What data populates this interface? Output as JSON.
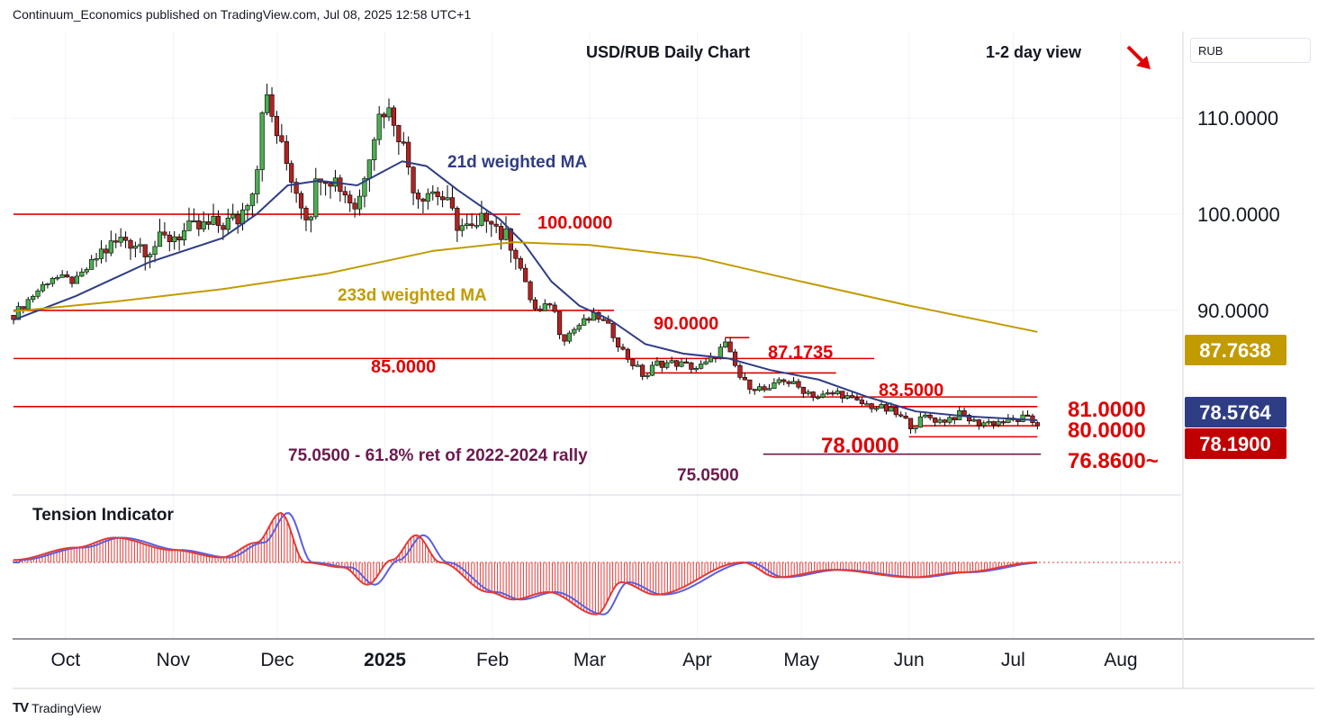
{
  "header": "Continuum_Economics published on TradingView.com, Jul 08, 2025 12:58 UTC+1",
  "currency_label": "RUB",
  "footer_brand": "TradingView",
  "colors": {
    "support_resistance": "#e00000",
    "ma21": "#2f3d84",
    "ma233": "#c29b00",
    "up_candle": "#4caf50",
    "down_candle": "#b22222",
    "fib_line": "#6b1a4f",
    "tension_red": "#e53935",
    "tension_blue": "#5b5fe0"
  },
  "chart_data": {
    "type": "candlestick",
    "title": "USD/RUB Daily Chart",
    "view_label": "1-2 day view",
    "view_direction": "down",
    "x_ticks": [
      "Oct",
      "Nov",
      "Dec",
      "2025",
      "Feb",
      "Mar",
      "Apr",
      "May",
      "Jun",
      "Jul",
      "Aug"
    ],
    "y_ticks": [
      "110.0000",
      "100.0000",
      "90.0000"
    ],
    "ylim": [
      71.0,
      119.0
    ],
    "price_tags": [
      {
        "value": "87.7638",
        "color": "#c29b00"
      },
      {
        "value": "78.5764",
        "color": "#2f3d84"
      },
      {
        "value": "78.1900",
        "color": "#c00000"
      }
    ],
    "levels": [
      {
        "value": 100.0,
        "label": "100.0000"
      },
      {
        "value": 90.0,
        "label": "90.0000"
      },
      {
        "value": 87.1735,
        "label": "87.1735"
      },
      {
        "value": 85.0,
        "label": "85.0000"
      },
      {
        "value": 83.5,
        "label": "83.5000"
      },
      {
        "value": 81.0,
        "label": "81.0000"
      },
      {
        "value": 80.0,
        "label": "80.0000"
      },
      {
        "value": 78.0,
        "label": "78.0000"
      },
      {
        "value": 76.86,
        "label": "76.8600~"
      },
      {
        "value": 75.05,
        "label": "75.0500"
      }
    ],
    "annotations": {
      "fib_text": "75.0500 - 61.8% ret of 2022-2024 rally",
      "ma21_label": "21d weighted MA",
      "ma233_label": "233d weighted MA",
      "indicator_label": "Tension Indicator"
    },
    "close_path": [
      [
        "2024-09-16",
        89.5
      ],
      [
        "2024-09-20",
        91.0
      ],
      [
        "2024-09-27",
        93.5
      ],
      [
        "2024-10-04",
        93.0
      ],
      [
        "2024-10-11",
        96.0
      ],
      [
        "2024-10-18",
        97.5
      ],
      [
        "2024-10-25",
        96.5
      ],
      [
        "2024-11-01",
        97.8
      ],
      [
        "2024-11-08",
        98.5
      ],
      [
        "2024-11-15",
        99.0
      ],
      [
        "2024-11-20",
        99.5
      ],
      [
        "2024-11-25",
        104.0
      ],
      [
        "2024-11-27",
        113.0
      ],
      [
        "2024-12-02",
        107.0
      ],
      [
        "2024-12-06",
        103.0
      ],
      [
        "2024-12-10",
        99.5
      ],
      [
        "2024-12-13",
        104.5
      ],
      [
        "2024-12-18",
        103.5
      ],
      [
        "2024-12-20",
        102.5
      ],
      [
        "2024-12-24",
        100.5
      ],
      [
        "2024-12-27",
        106.0
      ],
      [
        "2024-12-31",
        111.0
      ],
      [
        "2025-01-03",
        110.5
      ],
      [
        "2025-01-06",
        107.5
      ],
      [
        "2025-01-10",
        102.0
      ],
      [
        "2025-01-14",
        102.5
      ],
      [
        "2025-01-17",
        102.0
      ],
      [
        "2025-01-22",
        99.0
      ],
      [
        "2025-01-27",
        98.0
      ],
      [
        "2025-01-31",
        100.5
      ],
      [
        "2025-02-03",
        98.0
      ],
      [
        "2025-02-07",
        97.0
      ],
      [
        "2025-02-11",
        92.0
      ],
      [
        "2025-02-14",
        89.5
      ],
      [
        "2025-02-18",
        91.0
      ],
      [
        "2025-02-21",
        87.0
      ],
      [
        "2025-02-26",
        88.5
      ],
      [
        "2025-03-03",
        89.5
      ],
      [
        "2025-03-07",
        88.0
      ],
      [
        "2025-03-11",
        85.5
      ],
      [
        "2025-03-17",
        83.0
      ],
      [
        "2025-03-20",
        84.5
      ],
      [
        "2025-03-26",
        84.5
      ],
      [
        "2025-04-01",
        84.0
      ],
      [
        "2025-04-04",
        84.5
      ],
      [
        "2025-04-09",
        86.5
      ],
      [
        "2025-04-14",
        82.5
      ],
      [
        "2025-04-18",
        82.0
      ],
      [
        "2025-04-22",
        81.5
      ],
      [
        "2025-04-25",
        83.0
      ],
      [
        "2025-04-30",
        82.0
      ],
      [
        "2025-05-06",
        81.0
      ],
      [
        "2025-05-12",
        81.5
      ],
      [
        "2025-05-16",
        80.5
      ],
      [
        "2025-05-22",
        80.0
      ],
      [
        "2025-05-27",
        79.5
      ],
      [
        "2025-06-02",
        78.0
      ],
      [
        "2025-06-06",
        79.0
      ],
      [
        "2025-06-10",
        78.5
      ],
      [
        "2025-06-16",
        79.2
      ],
      [
        "2025-06-20",
        78.3
      ],
      [
        "2025-06-26",
        78.4
      ],
      [
        "2025-07-01",
        78.5
      ],
      [
        "2025-07-04",
        78.8
      ],
      [
        "2025-07-08",
        78.19
      ]
    ],
    "ma21_path": [
      [
        "2024-09-16",
        89.0
      ],
      [
        "2024-10-04",
        91.5
      ],
      [
        "2024-10-25",
        95.0
      ],
      [
        "2024-11-15",
        97.5
      ],
      [
        "2024-11-25",
        100.0
      ],
      [
        "2024-12-04",
        103.0
      ],
      [
        "2024-12-13",
        103.5
      ],
      [
        "2024-12-24",
        103.0
      ],
      [
        "2025-01-06",
        105.5
      ],
      [
        "2025-01-13",
        105.0
      ],
      [
        "2025-01-22",
        102.5
      ],
      [
        "2025-02-03",
        99.5
      ],
      [
        "2025-02-10",
        97.0
      ],
      [
        "2025-02-18",
        93.0
      ],
      [
        "2025-02-26",
        90.5
      ],
      [
        "2025-03-07",
        89.0
      ],
      [
        "2025-03-17",
        86.5
      ],
      [
        "2025-03-28",
        85.5
      ],
      [
        "2025-04-10",
        85.0
      ],
      [
        "2025-04-22",
        83.8
      ],
      [
        "2025-05-06",
        82.8
      ],
      [
        "2025-05-20",
        81.0
      ],
      [
        "2025-06-03",
        79.5
      ],
      [
        "2025-06-17",
        79.0
      ],
      [
        "2025-07-08",
        78.5764
      ]
    ],
    "ma233_path": [
      [
        "2024-09-16",
        89.9
      ],
      [
        "2024-10-15",
        90.9
      ],
      [
        "2024-11-15",
        92.2
      ],
      [
        "2024-12-15",
        93.8
      ],
      [
        "2025-01-15",
        96.2
      ],
      [
        "2025-02-07",
        97.1
      ],
      [
        "2025-03-01",
        96.8
      ],
      [
        "2025-04-01",
        95.5
      ],
      [
        "2025-05-01",
        93.0
      ],
      [
        "2025-06-01",
        90.5
      ],
      [
        "2025-07-08",
        87.7638
      ]
    ],
    "tension_path": [
      [
        "2024-09-16",
        0.05
      ],
      [
        "2024-10-04",
        0.3
      ],
      [
        "2024-10-15",
        0.5
      ],
      [
        "2024-11-01",
        0.25
      ],
      [
        "2024-11-15",
        0.1
      ],
      [
        "2024-11-25",
        0.4
      ],
      [
        "2024-12-02",
        1.0
      ],
      [
        "2024-12-09",
        0.0
      ],
      [
        "2024-12-20",
        -0.1
      ],
      [
        "2024-12-27",
        -0.45
      ],
      [
        "2025-01-03",
        0.05
      ],
      [
        "2025-01-10",
        0.55
      ],
      [
        "2025-01-17",
        0.0
      ],
      [
        "2025-01-31",
        -0.6
      ],
      [
        "2025-02-07",
        -0.75
      ],
      [
        "2025-02-17",
        -0.6
      ],
      [
        "2025-03-03",
        -1.05
      ],
      [
        "2025-03-10",
        -0.4
      ],
      [
        "2025-03-20",
        -0.65
      ],
      [
        "2025-04-14",
        0.0
      ],
      [
        "2025-04-24",
        -0.3
      ],
      [
        "2025-05-10",
        -0.15
      ],
      [
        "2025-06-02",
        -0.3
      ],
      [
        "2025-06-16",
        -0.2
      ],
      [
        "2025-07-08",
        0.0
      ]
    ]
  }
}
